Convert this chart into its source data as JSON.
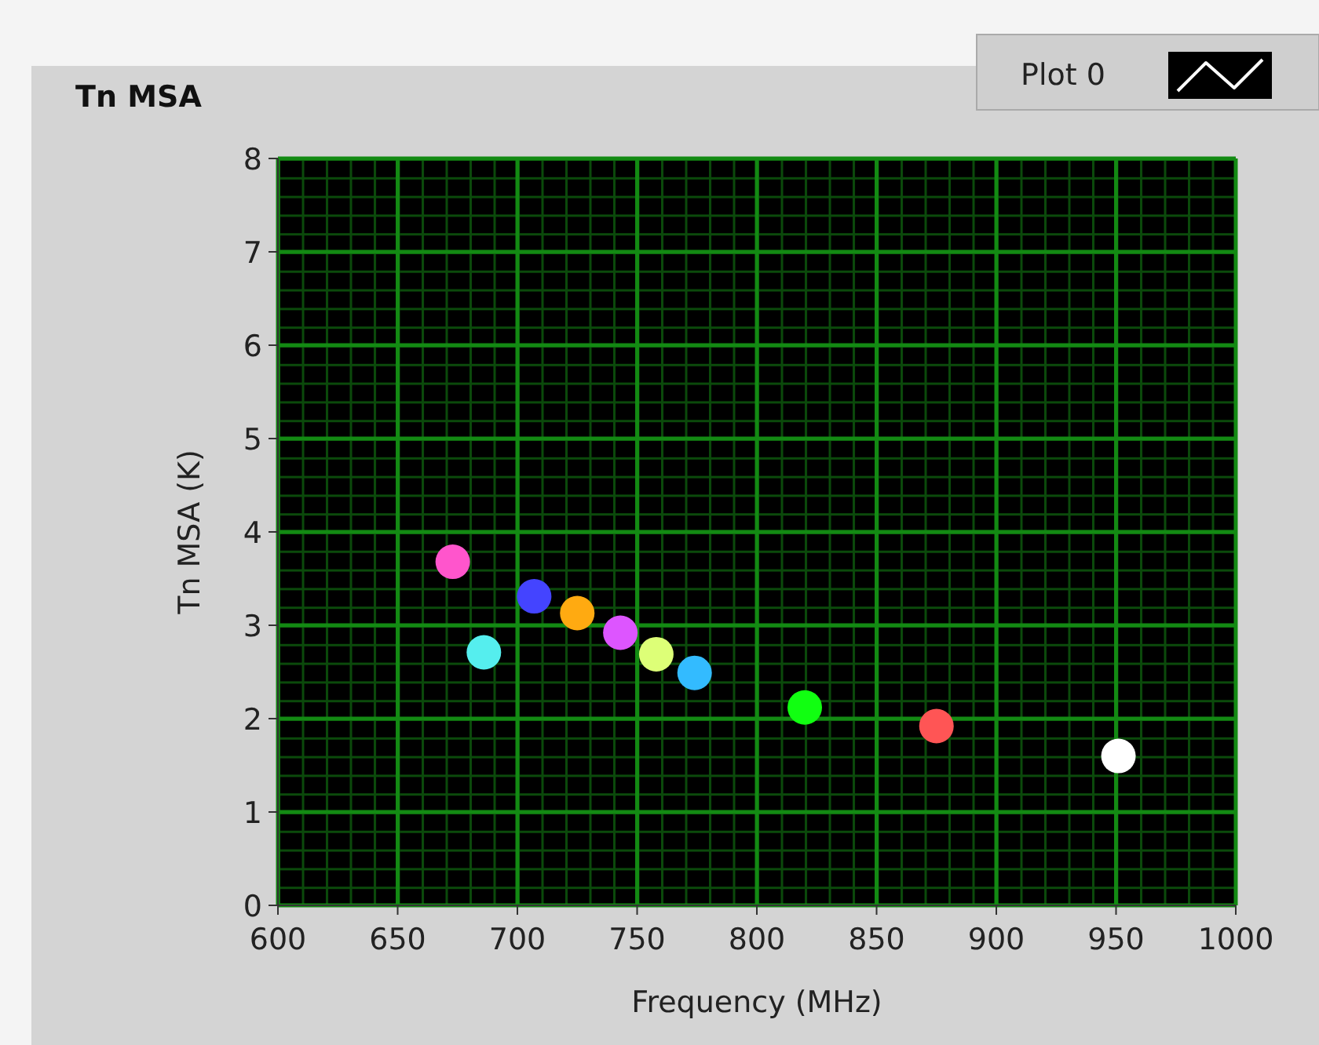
{
  "chart_data": {
    "type": "scatter",
    "title": "Tn MSA",
    "xlabel": "Frequency (MHz)",
    "ylabel": "Tn MSA (K)",
    "x": [
      673,
      686,
      707,
      725,
      743,
      758,
      774,
      820,
      875,
      951
    ],
    "series": [
      {
        "name": "Plot 0",
        "color": "#ffffff",
        "colors": [
          "#ff55cc",
          "#55eeee",
          "#4444ff",
          "#ffaa11",
          "#dd55ff",
          "#ddff77",
          "#33bbff",
          "#11ff11",
          "#ff5555",
          "#ffffff"
        ],
        "values": [
          3.68,
          2.71,
          3.31,
          3.13,
          2.92,
          2.69,
          2.49,
          2.12,
          1.92,
          1.6
        ]
      }
    ],
    "xlim": [
      600,
      1000
    ],
    "xticks": [
      600,
      650,
      700,
      750,
      800,
      850,
      900,
      950,
      1000
    ],
    "ylim": [
      0,
      8
    ],
    "yticks": [
      0,
      1,
      2,
      3,
      4,
      5,
      6,
      7,
      8
    ],
    "grid": true,
    "legend": "top right",
    "marker": "circle"
  }
}
